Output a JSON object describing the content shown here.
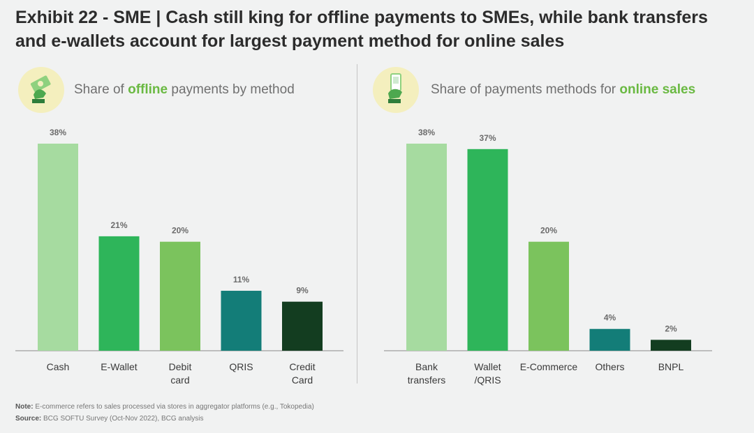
{
  "title": "Exhibit 22 - SME | Cash still king for offline payments to SMEs, while bank transfers and e-wallets account for largest payment method for online sales",
  "panels": {
    "offline": {
      "subtitle_pre": "Share of ",
      "subtitle_hl": "offline",
      "subtitle_post": " payments by method"
    },
    "online": {
      "subtitle_pre": "Share of payments methods for ",
      "subtitle_hl": "online sales",
      "subtitle_post": ""
    }
  },
  "chart_data": [
    {
      "type": "bar",
      "title": "Share of offline payments by method",
      "categories": [
        "Cash",
        "E-Wallet",
        "Debit\ncard",
        "QRIS",
        "Credit\nCard"
      ],
      "values": [
        38,
        21,
        20,
        11,
        9
      ],
      "value_labels": [
        "38%",
        "21%",
        "20%",
        "11%",
        "9%"
      ],
      "colors": [
        "#a6dba0",
        "#2eb55a",
        "#7bc35d",
        "#137d78",
        "#133d20"
      ],
      "ylim": [
        0,
        38
      ],
      "grid": false
    },
    {
      "type": "bar",
      "title": "Share of payments methods for online sales",
      "categories": [
        "Bank\ntransfers",
        "Wallet\n/QRIS",
        "E-Commerce",
        "Others",
        "BNPL"
      ],
      "values": [
        38,
        37,
        20,
        4,
        2
      ],
      "value_labels": [
        "38%",
        "37%",
        "20%",
        "4%",
        "2%"
      ],
      "colors": [
        "#a6dba0",
        "#2eb55a",
        "#7bc35d",
        "#137d78",
        "#133d20"
      ],
      "ylim": [
        0,
        38
      ],
      "grid": false
    }
  ],
  "footnote": {
    "note_label": "Note:",
    "note_text": " E-commerce refers to sales processed via stores in aggregator platforms (e.g., Tokopedia)",
    "source_label": "Source:",
    "source_text": " BCG SOFTU Survey (Oct-Nov 2022), BCG analysis"
  },
  "icons": [
    "money-hand-icon",
    "phone-hand-icon"
  ]
}
